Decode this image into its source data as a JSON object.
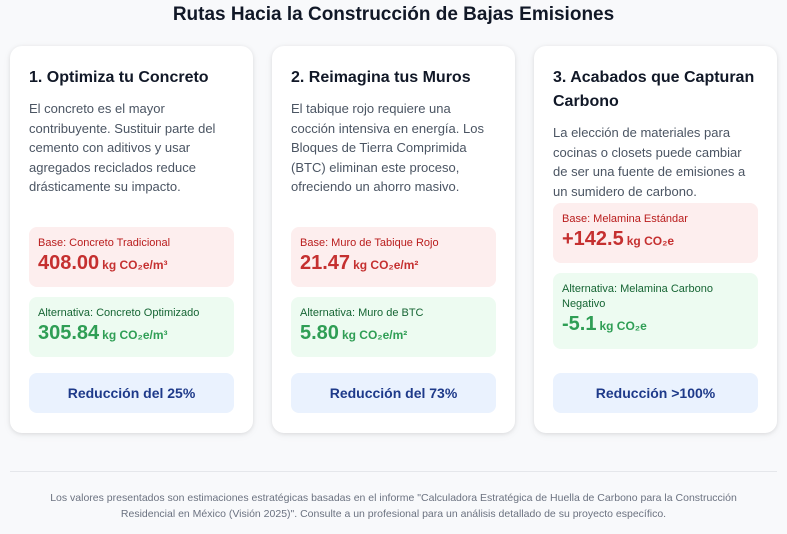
{
  "page_title": "Rutas Hacia la Construcción de Bajas Emisiones",
  "cards": [
    {
      "title": "1. Optimiza tu Concreto",
      "description": "El concreto es el mayor contribuyente. Sustituir parte del cemento con aditivos y usar agregados reciclados reduce drásticamente su impacto.",
      "base_label": "Base: Concreto Tradicional",
      "base_value": "408.00",
      "base_unit": "kg CO₂e/m³",
      "alt_label": "Alternativa: Concreto Optimizado",
      "alt_value": "305.84",
      "alt_unit": "kg CO₂e/m³",
      "reduction": "Reducción del 25%"
    },
    {
      "title": "2. Reimagina tus Muros",
      "description": "El tabique rojo requiere una cocción intensiva en energía. Los Bloques de Tierra Comprimida (BTC) eliminan este proceso, ofreciendo un ahorro masivo.",
      "base_label": "Base: Muro de Tabique Rojo",
      "base_value": "21.47",
      "base_unit": "kg CO₂e/m²",
      "alt_label": "Alternativa: Muro de BTC",
      "alt_value": "5.80",
      "alt_unit": "kg CO₂e/m²",
      "reduction": "Reducción del 73%"
    },
    {
      "title": "3. Acabados que Capturan Carbono",
      "description": "La elección de materiales para cocinas o closets puede cambiar de ser una fuente de emisiones a un sumidero de carbono.",
      "base_label": "Base: Melamina Estándar",
      "base_value": "+142.5",
      "base_unit": "kg CO₂e",
      "alt_label": "Alternativa: Melamina Carbono Negativo",
      "alt_value": "-5.1",
      "alt_unit": "kg CO₂e",
      "reduction": "Reducción >100%"
    }
  ],
  "footer_note": "Los valores presentados son estimaciones estratégicas basadas en el informe \"Calculadora Estratégica de Huella de Carbono para la Construcción Residencial en México (Visión 2025)\". Consulte a un profesional para un análisis detallado de su proyecto específico."
}
